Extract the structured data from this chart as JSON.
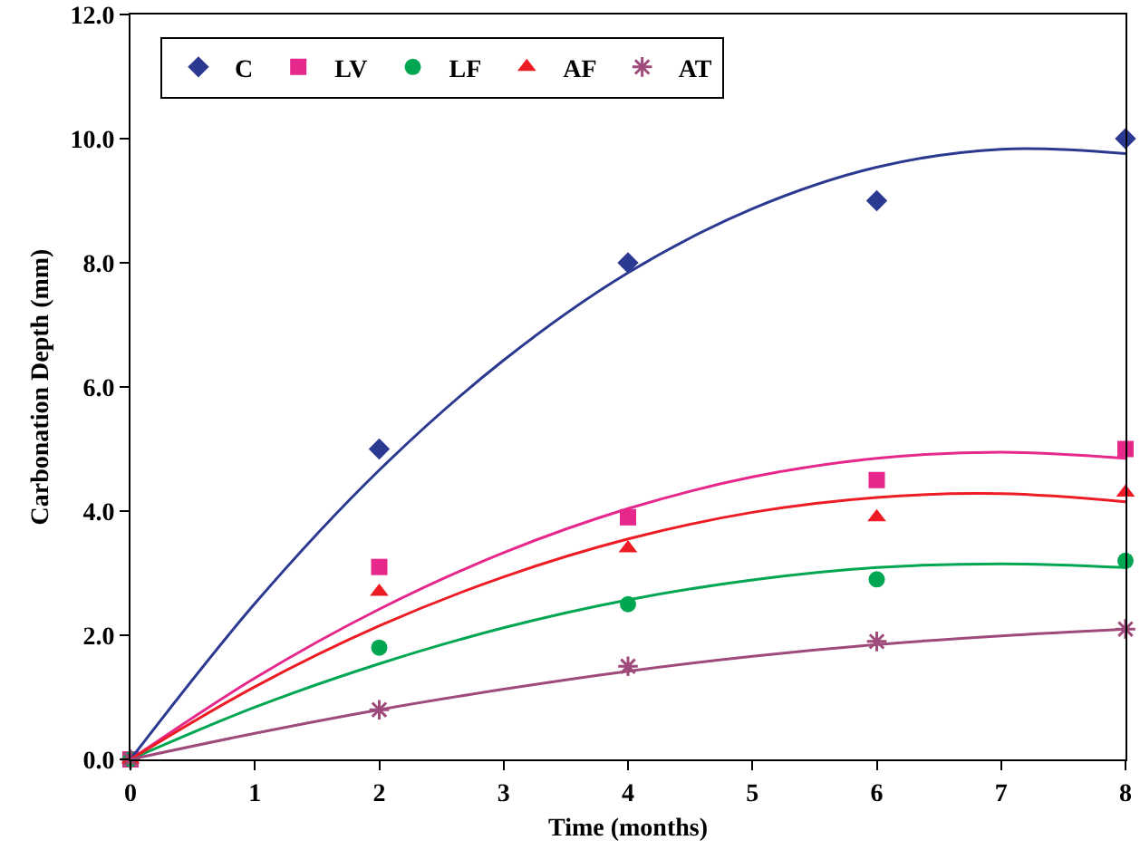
{
  "chart_data": {
    "type": "scatter",
    "xlabel": "Time (months)",
    "ylabel": "Carbonation Depth (mm)",
    "x": [
      0,
      2,
      4,
      6,
      8
    ],
    "series": [
      {
        "name": "C",
        "color": "#2b3990",
        "marker": "diamond",
        "values": [
          null,
          5.0,
          8.0,
          9.0,
          10.0
        ]
      },
      {
        "name": "LV",
        "color": "#e6278c",
        "marker": "square",
        "values": [
          0,
          3.1,
          3.9,
          4.5,
          5.0
        ]
      },
      {
        "name": "LF",
        "color": "#00a651",
        "marker": "circle",
        "values": [
          0,
          1.8,
          2.5,
          2.9,
          3.2
        ]
      },
      {
        "name": "AF",
        "color": "#ed1c24",
        "marker": "triangle",
        "values": [
          0,
          2.7,
          3.4,
          3.9,
          4.3
        ]
      },
      {
        "name": "AT",
        "color": "#9e4a7a",
        "marker": "cross",
        "values": [
          0,
          0.8,
          1.5,
          1.9,
          2.1
        ]
      },
      {
        "type": "line",
        "color": "#2b3990",
        "marker": "none",
        "x": [
          0,
          1,
          2,
          3,
          4,
          5,
          6,
          7,
          8
        ],
        "values": [
          0,
          2.51,
          4.66,
          6.43,
          7.84,
          8.87,
          9.54,
          9.83,
          9.76
        ]
      },
      {
        "type": "line",
        "color": "#e6278c",
        "marker": "none",
        "x": [
          0,
          1,
          2,
          3,
          4,
          5,
          6,
          7,
          8
        ],
        "values": [
          0,
          1.31,
          2.42,
          3.33,
          4.04,
          4.55,
          4.85,
          4.95,
          4.85
        ]
      },
      {
        "type": "line",
        "color": "#00a651",
        "marker": "none",
        "x": [
          0,
          1,
          2,
          3,
          4,
          5,
          6,
          7,
          8
        ],
        "values": [
          0,
          0.84,
          1.54,
          2.12,
          2.57,
          2.89,
          3.09,
          3.15,
          3.09
        ]
      },
      {
        "type": "line",
        "color": "#ed1c24",
        "marker": "none",
        "x": [
          0,
          1,
          2,
          3,
          4,
          5,
          6,
          7,
          8
        ],
        "values": [
          0,
          1.17,
          2.15,
          2.94,
          3.55,
          3.98,
          4.22,
          4.28,
          4.15
        ]
      },
      {
        "type": "line",
        "color": "#9e4a7a",
        "marker": "none",
        "x": [
          0,
          1,
          2,
          3,
          4,
          5,
          6,
          7,
          8
        ],
        "values": [
          0,
          0.42,
          0.8,
          1.13,
          1.42,
          1.66,
          1.85,
          1.99,
          2.1
        ]
      }
    ],
    "xlim": [
      0,
      8
    ],
    "xticks": [
      0,
      1,
      2,
      3,
      4,
      5,
      6,
      7,
      8
    ],
    "ylim": [
      0,
      12
    ],
    "yticks": [
      {
        "value": 0,
        "label": "0.0"
      },
      {
        "value": 2,
        "label": "2.0"
      },
      {
        "value": 4,
        "label": "4.0"
      },
      {
        "value": 6,
        "label": "6.0"
      },
      {
        "value": 8,
        "label": "8.0"
      },
      {
        "value": 10,
        "label": "10.0"
      },
      {
        "value": 12,
        "label": "12.0"
      }
    ],
    "grid": false,
    "legend": "top left"
  }
}
